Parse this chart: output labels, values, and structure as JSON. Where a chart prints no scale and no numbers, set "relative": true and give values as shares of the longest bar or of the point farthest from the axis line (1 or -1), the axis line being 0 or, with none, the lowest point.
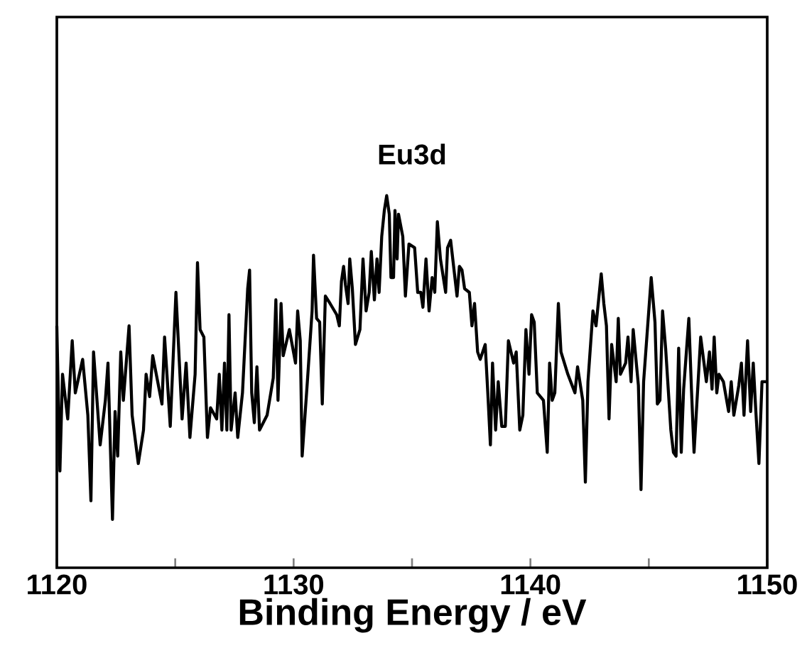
{
  "chart_data": {
    "type": "line",
    "relative": true,
    "xlabel": "Binding Energy / eV",
    "xlim": [
      1120,
      1150
    ],
    "xticks": [
      1120,
      {
        "value": 1125,
        "label": null
      },
      1130,
      {
        "value": 1135,
        "label": null
      },
      1140,
      {
        "value": 1145,
        "label": null
      },
      1150
    ],
    "marker": "none",
    "line_style": "solid",
    "grid": false,
    "legend": false,
    "annotations": [
      "Eu3d"
    ],
    "series": [
      {
        "color": "#000000",
        "x": [
          1120.0,
          1120.13,
          1120.24,
          1120.46,
          1120.65,
          1120.78,
          1121.09,
          1121.31,
          1121.44,
          1121.55,
          1121.83,
          1122.05,
          1122.16,
          1122.35,
          1122.46,
          1122.57,
          1122.7,
          1122.81,
          1123.05,
          1123.18,
          1123.44,
          1123.66,
          1123.77,
          1123.92,
          1124.05,
          1124.44,
          1124.55,
          1124.79,
          1125.03,
          1125.29,
          1125.46,
          1125.62,
          1125.84,
          1125.94,
          1126.05,
          1126.21,
          1126.36,
          1126.49,
          1126.75,
          1126.86,
          1126.97,
          1127.08,
          1127.18,
          1127.27,
          1127.36,
          1127.53,
          1127.64,
          1127.84,
          1128.06,
          1128.14,
          1128.23,
          1128.34,
          1128.45,
          1128.56,
          1128.88,
          1129.14,
          1129.25,
          1129.34,
          1129.47,
          1129.56,
          1129.82,
          1130.08,
          1130.17,
          1130.28,
          1130.36,
          1130.58,
          1130.78,
          1130.84,
          1130.97,
          1131.1,
          1131.21,
          1131.34,
          1131.54,
          1131.82,
          1131.93,
          1132.02,
          1132.11,
          1132.19,
          1132.3,
          1132.37,
          1132.48,
          1132.61,
          1132.8,
          1132.93,
          1133.06,
          1133.19,
          1133.28,
          1133.41,
          1133.52,
          1133.61,
          1133.72,
          1133.83,
          1133.93,
          1134.04,
          1134.11,
          1134.22,
          1134.28,
          1134.37,
          1134.43,
          1134.61,
          1134.72,
          1134.87,
          1135.11,
          1135.24,
          1135.37,
          1135.46,
          1135.59,
          1135.72,
          1135.85,
          1135.96,
          1136.07,
          1136.2,
          1136.42,
          1136.5,
          1136.63,
          1136.9,
          1137.0,
          1137.11,
          1137.22,
          1137.42,
          1137.53,
          1137.64,
          1137.77,
          1137.88,
          1138.09,
          1138.2,
          1138.31,
          1138.4,
          1138.53,
          1138.64,
          1138.79,
          1138.94,
          1139.07,
          1139.29,
          1139.4,
          1139.55,
          1139.68,
          1139.81,
          1139.94,
          1140.05,
          1140.16,
          1140.29,
          1140.55,
          1140.71,
          1140.81,
          1140.92,
          1141.03,
          1141.18,
          1141.29,
          1141.58,
          1141.88,
          1141.99,
          1142.21,
          1142.32,
          1142.43,
          1142.64,
          1142.77,
          1142.99,
          1143.1,
          1143.21,
          1143.32,
          1143.43,
          1143.62,
          1143.71,
          1143.8,
          1144.02,
          1144.12,
          1144.25,
          1144.34,
          1144.56,
          1144.67,
          1144.78,
          1145.1,
          1145.26,
          1145.36,
          1145.47,
          1145.58,
          1145.71,
          1145.93,
          1146.04,
          1146.15,
          1146.26,
          1146.37,
          1146.47,
          1146.69,
          1146.8,
          1146.91,
          1147.19,
          1147.43,
          1147.56,
          1147.67,
          1147.76,
          1147.87,
          1147.96,
          1148.15,
          1148.37,
          1148.48,
          1148.59,
          1148.8,
          1148.91,
          1149.02,
          1149.17,
          1149.3,
          1149.41,
          1149.52,
          1149.65,
          1149.78,
          1150.0
        ],
        "values": [
          0.65,
          0.26,
          0.52,
          0.4,
          0.61,
          0.47,
          0.56,
          0.41,
          0.18,
          0.58,
          0.33,
          0.45,
          0.55,
          0.13,
          0.42,
          0.3,
          0.58,
          0.45,
          0.65,
          0.41,
          0.28,
          0.37,
          0.52,
          0.46,
          0.57,
          0.44,
          0.62,
          0.38,
          0.74,
          0.4,
          0.55,
          0.35,
          0.52,
          0.82,
          0.64,
          0.62,
          0.35,
          0.43,
          0.4,
          0.52,
          0.37,
          0.55,
          0.37,
          0.68,
          0.37,
          0.47,
          0.35,
          0.47,
          0.75,
          0.8,
          0.47,
          0.39,
          0.54,
          0.37,
          0.41,
          0.51,
          0.72,
          0.45,
          0.71,
          0.57,
          0.64,
          0.55,
          0.69,
          0.61,
          0.3,
          0.5,
          0.69,
          0.84,
          0.67,
          0.66,
          0.44,
          0.73,
          0.71,
          0.68,
          0.65,
          0.77,
          0.81,
          0.76,
          0.71,
          0.83,
          0.75,
          0.6,
          0.64,
          0.83,
          0.69,
          0.74,
          0.85,
          0.72,
          0.83,
          0.74,
          0.89,
          0.96,
          1.0,
          0.95,
          0.78,
          0.78,
          0.96,
          0.83,
          0.95,
          0.89,
          0.73,
          0.87,
          0.86,
          0.74,
          0.74,
          0.7,
          0.83,
          0.69,
          0.78,
          0.74,
          0.93,
          0.83,
          0.74,
          0.86,
          0.88,
          0.73,
          0.81,
          0.8,
          0.75,
          0.74,
          0.65,
          0.71,
          0.58,
          0.56,
          0.6,
          0.47,
          0.33,
          0.55,
          0.37,
          0.5,
          0.38,
          0.38,
          0.61,
          0.55,
          0.58,
          0.37,
          0.41,
          0.64,
          0.52,
          0.68,
          0.66,
          0.47,
          0.45,
          0.31,
          0.55,
          0.45,
          0.47,
          0.71,
          0.58,
          0.52,
          0.47,
          0.54,
          0.45,
          0.23,
          0.5,
          0.69,
          0.65,
          0.79,
          0.71,
          0.65,
          0.4,
          0.6,
          0.5,
          0.67,
          0.52,
          0.55,
          0.62,
          0.5,
          0.64,
          0.49,
          0.21,
          0.5,
          0.78,
          0.66,
          0.44,
          0.45,
          0.69,
          0.59,
          0.37,
          0.31,
          0.3,
          0.59,
          0.31,
          0.48,
          0.67,
          0.48,
          0.31,
          0.62,
          0.5,
          0.58,
          0.48,
          0.62,
          0.47,
          0.52,
          0.5,
          0.42,
          0.5,
          0.41,
          0.49,
          0.55,
          0.41,
          0.61,
          0.42,
          0.55,
          0.42,
          0.28,
          0.5,
          0.5
        ]
      }
    ]
  }
}
